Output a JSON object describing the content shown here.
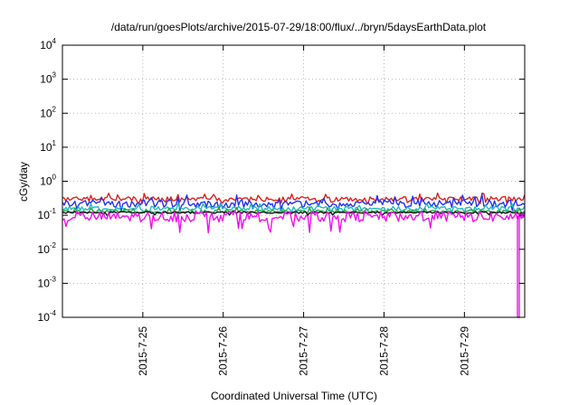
{
  "chart_data": {
    "type": "line",
    "title": "/data/run/goesPlots/archive/2015-07-29/18:00/flux/../bryn/5daysEarthData.plot",
    "xlabel": "Coordinated Universal Time (UTC)",
    "ylabel": "cGy/day",
    "y_scale": "log",
    "ylim": [
      0.0001,
      10000
    ],
    "y_ticks": [
      {
        "value": 0.0001,
        "base": "10",
        "exp": "-4"
      },
      {
        "value": 0.001,
        "base": "10",
        "exp": "-3"
      },
      {
        "value": 0.01,
        "base": "10",
        "exp": "-2"
      },
      {
        "value": 0.1,
        "base": "10",
        "exp": "-1"
      },
      {
        "value": 1,
        "base": "10",
        "exp": "0"
      },
      {
        "value": 10,
        "base": "10",
        "exp": "1"
      },
      {
        "value": 100,
        "base": "10",
        "exp": "2"
      },
      {
        "value": 1000,
        "base": "10",
        "exp": "3"
      },
      {
        "value": 10000,
        "base": "10",
        "exp": "4"
      }
    ],
    "xlim": [
      "2015-07-24T00:00",
      "2015-07-29T18:00"
    ],
    "x_ticks": [
      "2015-7-25",
      "2015-7-26",
      "2015-7-27",
      "2015-7-28",
      "2015-7-29"
    ],
    "grid": true,
    "legend": "none",
    "series": [
      {
        "color": "#dd2222",
        "typical_value": 0.3,
        "low": 0.22,
        "high": 0.45
      },
      {
        "color": "#2233ee",
        "typical_value": 0.22,
        "low": 0.13,
        "high": 0.4
      },
      {
        "color": "#22bbbb",
        "typical_value": 0.16,
        "low": 0.12,
        "high": 0.22
      },
      {
        "color": "#22aa44",
        "typical_value": 0.13,
        "low": 0.11,
        "high": 0.17
      },
      {
        "color": "#111111",
        "typical_value": 0.12,
        "low": 0.1,
        "high": 0.13
      },
      {
        "color": "#ee11ee",
        "typical_value": 0.09,
        "low": 0.03,
        "high": 0.14,
        "final_drop_to": 0.0001
      }
    ]
  }
}
